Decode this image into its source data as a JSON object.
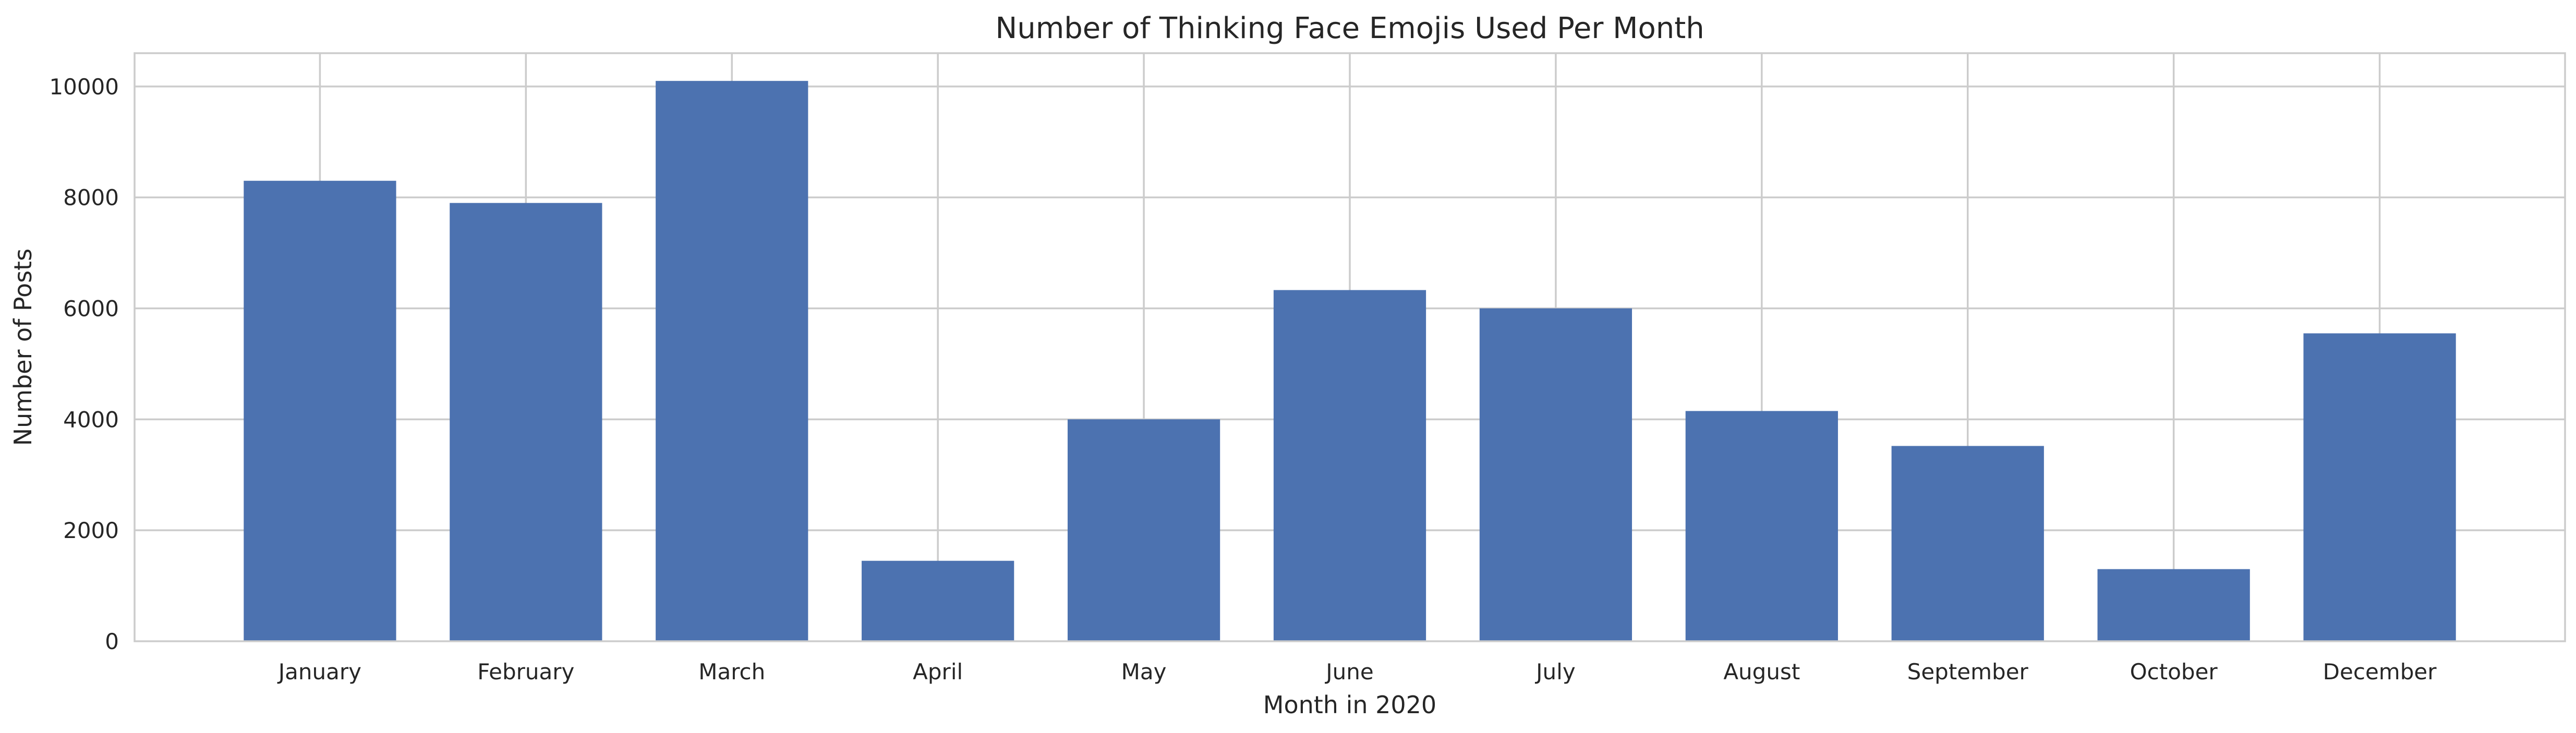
{
  "chart_data": {
    "type": "bar",
    "title": "Number of Thinking Face Emojis Used Per Month",
    "xlabel": "Month in 2020",
    "ylabel": "Number of Posts",
    "categories": [
      "January",
      "February",
      "March",
      "April",
      "May",
      "June",
      "July",
      "August",
      "September",
      "October",
      "December"
    ],
    "values": [
      8300,
      7900,
      10100,
      1450,
      4000,
      6330,
      6000,
      4150,
      3520,
      1300,
      5550
    ],
    "ylim": [
      0,
      10600
    ],
    "yticks": [
      0,
      2000,
      4000,
      6000,
      8000,
      10000
    ],
    "grid": true,
    "legend": "none",
    "bar_color": "#4c72b0",
    "grid_color": "#cccccc",
    "text_color": "#262626"
  }
}
